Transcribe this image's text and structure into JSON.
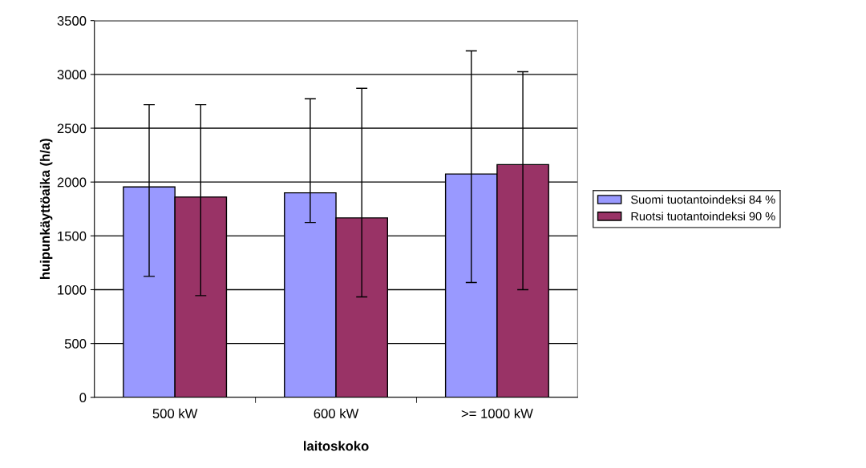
{
  "chart_data": {
    "type": "bar",
    "xlabel": "laitoskoko",
    "ylabel": "huipunkäyttöaika (h/a)",
    "categories": [
      "500 kW",
      "600 kW",
      ">= 1000 kW"
    ],
    "series": [
      {
        "name": "Suomi tuotantoindeksi 84 %",
        "color": "#9999ff",
        "values": [
          1955,
          1900,
          2075
        ],
        "errors": [
          [
            1124,
            2719
          ],
          [
            1624,
            2774
          ],
          [
            1067,
            3219
          ]
        ]
      },
      {
        "name": "Ruotsi tuotantoindeksi 90 %",
        "color": "#993366",
        "values": [
          1861,
          1667,
          2162
        ],
        "errors": [
          [
            945,
            2719
          ],
          [
            933,
            2871
          ],
          [
            1000,
            3025
          ]
        ]
      }
    ],
    "ylim": [
      0,
      3500
    ],
    "yticks": [
      0,
      500,
      1000,
      1500,
      2000,
      2500,
      3000,
      3500
    ],
    "grid": "y",
    "legend": "right"
  }
}
